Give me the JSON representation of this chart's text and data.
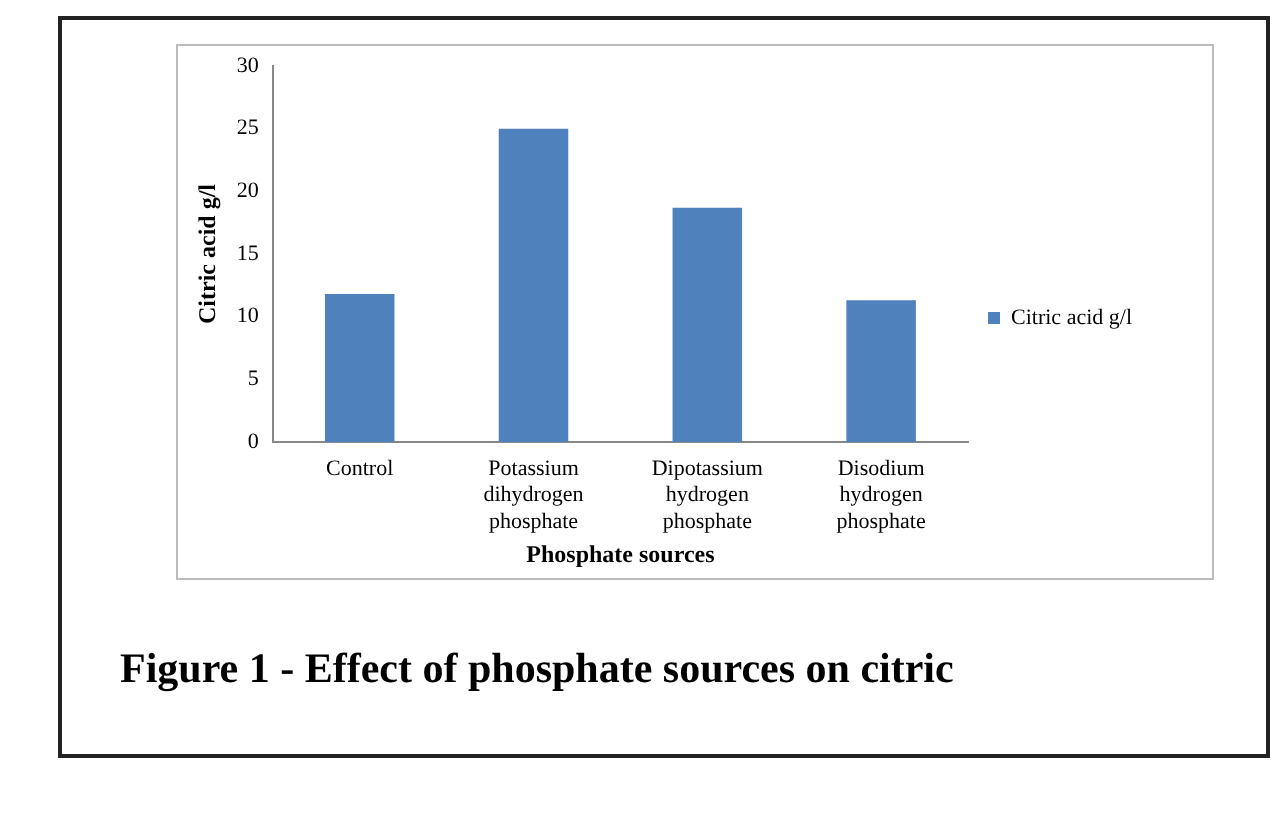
{
  "chart_data": {
    "type": "bar",
    "categories": [
      "Control",
      "Potassium dihydrogen phosphate",
      "Dipotassium hydrogen phosphate",
      "Disodium hydrogen phosphate"
    ],
    "series": [
      {
        "name": "Citric acid g/l",
        "color": "#4f81bd",
        "values": [
          11.8,
          25.0,
          18.7,
          11.3
        ]
      }
    ],
    "xlabel": "Phosphate sources",
    "ylabel": "Citric acid g/l",
    "ylim": [
      0,
      30
    ],
    "yticks": [
      0,
      5,
      10,
      15,
      20,
      25,
      30
    ],
    "legend": "right",
    "annotations": [
      "Figure 1 - Effect of phosphate sources on citric"
    ]
  }
}
